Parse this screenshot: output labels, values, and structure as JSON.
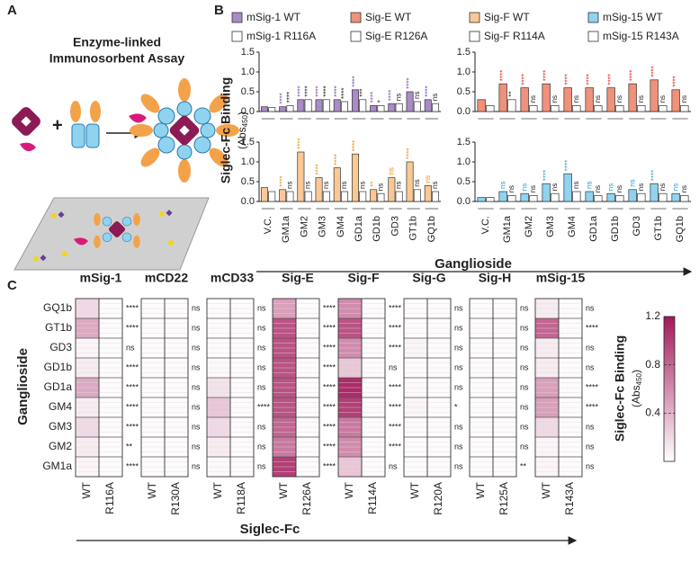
{
  "panel_labels": [
    "A",
    "B",
    "C"
  ],
  "diagram": {
    "title_lines": [
      "Enzyme-linked",
      "Immunosorbent Assay"
    ]
  },
  "panel_b": {
    "y_label": "Siglec-Fc Binding",
    "y_unit": [
      "(Abs",
      "450",
      ")"
    ],
    "x_label": "Ganglioside"
  },
  "chart_data": [
    {
      "type": "bar",
      "categories": [
        null,
        null,
        null,
        null,
        null,
        null,
        null,
        null,
        null,
        null
      ],
      "ylim": [
        0,
        1.5
      ],
      "yticks": [
        {
          "value": 0,
          "label": "0.0"
        },
        0.5,
        {
          "value": 1,
          "label": "1.0"
        },
        1.5
      ],
      "series": [
        {
          "name": "mSig-1 WT",
          "color": "#a98bc8",
          "label_color": "#7b4fa6",
          "values": [
            0.12,
            0.12,
            0.3,
            0.3,
            0.3,
            0.55,
            0.15,
            0.2,
            0.5,
            0.3
          ],
          "annotations": [
            null,
            "****",
            "****",
            "****",
            "****",
            "****",
            "****",
            "****",
            "****",
            "****"
          ]
        },
        {
          "name": "mSig-1 R116A",
          "color": "#ffffff",
          "label_color": "#222222",
          "values": [
            0.1,
            0.15,
            0.3,
            0.3,
            0.25,
            0.3,
            0.15,
            0.2,
            0.25,
            0.2
          ],
          "annotations": [
            null,
            "****",
            "****",
            "****",
            "****",
            "***",
            "*",
            "ns",
            "ns",
            "ns"
          ]
        }
      ]
    },
    {
      "type": "bar",
      "categories": [
        null,
        null,
        null,
        null,
        null,
        null,
        null,
        null,
        null,
        null
      ],
      "ylim": [
        0,
        1.5
      ],
      "yticks": [
        {
          "value": 0,
          "label": "0.0"
        },
        0.5,
        {
          "value": 1,
          "label": "1.0"
        },
        1.5
      ],
      "series": [
        {
          "name": "Sig-E WT",
          "color": "#f0917a",
          "label_color": "#e0281c",
          "values": [
            0.3,
            0.7,
            0.6,
            0.7,
            0.6,
            0.6,
            0.6,
            0.7,
            0.8,
            0.55
          ],
          "annotations": [
            null,
            "****",
            "****",
            "****",
            "****",
            "****",
            "****",
            "****",
            "****",
            "****"
          ]
        },
        {
          "name": "Sig-E R126A",
          "color": "#ffffff",
          "label_color": "#222222",
          "values": [
            0.15,
            0.3,
            0.15,
            0.15,
            0.15,
            0.15,
            0.15,
            0.15,
            0.15,
            0.15
          ],
          "annotations": [
            null,
            "**",
            "ns",
            "ns",
            "ns",
            "ns",
            "ns",
            "ns",
            "ns",
            "ns"
          ]
        }
      ]
    },
    {
      "type": "bar",
      "categories": [
        "V.C.",
        "GM1a",
        "GM2",
        "GM3",
        "GM4",
        "GD1a",
        "GD1b",
        "GD3",
        "GT1b",
        "GQ1b"
      ],
      "ylim": [
        0,
        1.5
      ],
      "yticks": [
        {
          "value": 0,
          "label": "0.0"
        },
        0.5,
        {
          "value": 1,
          "label": "1.0"
        },
        1.5
      ],
      "series": [
        {
          "name": "Sig-F WT",
          "color": "#f9c894",
          "label_color": "#e8901e",
          "values": [
            0.35,
            0.3,
            1.25,
            0.6,
            0.85,
            1.2,
            0.3,
            0.6,
            1.0,
            0.4
          ],
          "annotations": [
            null,
            "****",
            "****",
            "****",
            "****",
            "****",
            "**",
            "ns",
            "****",
            "ns"
          ]
        },
        {
          "name": "Sig-F R114A",
          "color": "#ffffff",
          "label_color": "#222222",
          "values": [
            0.25,
            0.25,
            0.25,
            0.25,
            0.25,
            0.25,
            0.2,
            0.25,
            0.3,
            0.25
          ],
          "annotations": [
            null,
            "ns",
            "ns",
            "ns",
            "ns",
            "ns",
            "ns",
            "ns",
            "ns",
            "ns"
          ]
        }
      ]
    },
    {
      "type": "bar",
      "categories": [
        "V.C.",
        "GM1a",
        "GM2",
        "GM3",
        "GM4",
        "GD1a",
        "GD1b",
        "GD3",
        "GT1b",
        "GQ1b"
      ],
      "ylim": [
        0,
        1.5
      ],
      "yticks": [
        {
          "value": 0,
          "label": "0.0"
        },
        0.5,
        {
          "value": 1,
          "label": "1.0"
        },
        1.5
      ],
      "series": [
        {
          "name": "mSig-15 WT",
          "color": "#8fd3ef",
          "label_color": "#2a9fd0",
          "values": [
            0.1,
            0.25,
            0.2,
            0.45,
            0.7,
            0.25,
            0.2,
            0.3,
            0.45,
            0.2
          ],
          "annotations": [
            null,
            "ns",
            "ns",
            "****",
            "****",
            "ns",
            "ns",
            "ns",
            "****",
            "ns"
          ]
        },
        {
          "name": "mSig-15 R143A",
          "color": "#ffffff",
          "label_color": "#222222",
          "values": [
            0.1,
            0.15,
            0.15,
            0.2,
            0.25,
            0.15,
            0.15,
            0.2,
            0.2,
            0.15
          ],
          "annotations": [
            null,
            "ns",
            "ns",
            "ns",
            "ns",
            "ns",
            "ns",
            "ns",
            "ns",
            "ns"
          ]
        }
      ]
    },
    {
      "type": "heatmap",
      "x_label": "Siglec-Fc",
      "y_label": "Ganglioside",
      "rows": [
        "GQ1b",
        "GT1b",
        "GD3",
        "GD1b",
        "GD1a",
        "GM4",
        "GM3",
        "GM2",
        "GM1a"
      ],
      "groups": [
        {
          "name": "mSig-1",
          "columns": [
            "WT",
            "R116A"
          ],
          "values": [
            [
              0.2,
              0.45,
              0.05,
              0.1,
              0.45,
              0.1,
              0.2,
              0.1,
              0.05
            ],
            [
              0.02,
              0.02,
              0.02,
              0.02,
              0.02,
              0.02,
              0.02,
              0.02,
              0.02
            ]
          ],
          "significance": [
            "****",
            "****",
            "ns",
            "****",
            "****",
            "****",
            "****",
            "**",
            "****"
          ]
        },
        {
          "name": "mCD22",
          "columns": [
            "WT",
            "R130A"
          ],
          "values": [
            [
              0.02,
              0.02,
              0.02,
              0.02,
              0.02,
              0.02,
              0.02,
              0.02,
              0.02
            ],
            [
              0.02,
              0.02,
              0.02,
              0.02,
              0.02,
              0.02,
              0.02,
              0.02,
              0.02
            ]
          ],
          "significance": [
            "ns",
            "ns",
            "ns",
            "ns",
            "ns",
            "ns",
            "ns",
            "ns",
            "ns"
          ]
        },
        {
          "name": "mCD33",
          "columns": [
            "WT",
            "R118A"
          ],
          "values": [
            [
              0.02,
              0.02,
              0.02,
              0.03,
              0.15,
              0.3,
              0.2,
              0.1,
              0.03
            ],
            [
              0.02,
              0.02,
              0.02,
              0.02,
              0.02,
              0.02,
              0.02,
              0.02,
              0.02
            ]
          ],
          "significance": [
            "ns",
            "ns",
            "ns",
            "ns",
            "ns",
            "****",
            "ns",
            "ns",
            "ns"
          ]
        },
        {
          "name": "Sig-E",
          "columns": [
            "WT",
            "R126A"
          ],
          "values": [
            [
              0.5,
              0.9,
              0.9,
              0.9,
              0.9,
              0.9,
              0.8,
              0.7,
              1.0
            ],
            [
              0.02,
              0.02,
              0.02,
              0.02,
              0.02,
              0.02,
              0.02,
              0.02,
              0.02
            ]
          ],
          "significance": [
            "****",
            "****",
            "****",
            "****",
            "****",
            "****",
            "****",
            "****",
            "****"
          ]
        },
        {
          "name": "Sig-F",
          "columns": [
            "WT",
            "R114A"
          ],
          "values": [
            [
              0.6,
              0.9,
              0.6,
              0.3,
              1.1,
              1.0,
              0.7,
              0.6,
              0.3
            ],
            [
              0.02,
              0.02,
              0.02,
              0.02,
              0.02,
              0.02,
              0.02,
              0.02,
              0.02
            ]
          ],
          "significance": [
            "****",
            "****",
            "****",
            "ns",
            "****",
            "****",
            "****",
            "****",
            "ns"
          ]
        },
        {
          "name": "Sig-G",
          "columns": [
            "WT",
            "R120A"
          ],
          "values": [
            [
              0.02,
              0.02,
              0.05,
              0.02,
              0.03,
              0.05,
              0.02,
              0.02,
              0.02
            ],
            [
              0.02,
              0.02,
              0.02,
              0.02,
              0.02,
              0.02,
              0.02,
              0.02,
              0.02
            ]
          ],
          "significance": [
            "ns",
            "ns",
            "ns",
            "ns",
            "ns",
            "*",
            "ns",
            "ns",
            "ns"
          ]
        },
        {
          "name": "Sig-H",
          "columns": [
            "WT",
            "R125A"
          ],
          "values": [
            [
              0.02,
              0.02,
              0.02,
              0.02,
              0.02,
              0.02,
              0.02,
              0.02,
              0.02
            ],
            [
              0.02,
              0.02,
              0.02,
              0.02,
              0.02,
              0.02,
              0.02,
              0.02,
              0.02
            ]
          ],
          "significance": [
            "ns",
            "ns",
            "ns",
            "ns",
            "ns",
            "ns",
            "ns",
            "ns",
            "**"
          ]
        },
        {
          "name": "mSig-15",
          "columns": [
            "WT",
            "R143A"
          ],
          "values": [
            [
              0.1,
              0.8,
              0.1,
              0.1,
              0.5,
              0.5,
              0.2,
              0.05,
              0.05
            ],
            [
              0.02,
              0.02,
              0.02,
              0.02,
              0.02,
              0.02,
              0.02,
              0.02,
              0.02
            ]
          ],
          "significance": [
            "ns",
            "****",
            "ns",
            "ns",
            "****",
            "****",
            "ns",
            "ns",
            "ns"
          ]
        }
      ],
      "colorbar": {
        "lim": [
          0,
          1.2
        ],
        "ticks": [
          0.4,
          0.8,
          1.2
        ],
        "title": "Siglec-Fc Binding",
        "unit": [
          "(Abs",
          "450",
          ")"
        ],
        "colors": [
          "#ffffff",
          "#a3195b"
        ]
      }
    }
  ]
}
